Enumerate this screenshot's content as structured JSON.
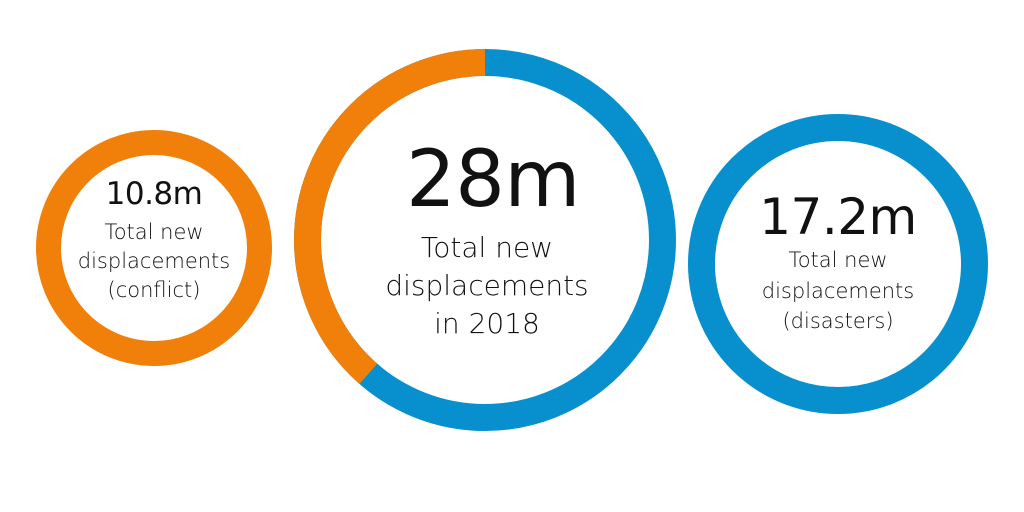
{
  "colors": {
    "conflict": "#F08009",
    "disasters": "#0790CD",
    "text": "#111111"
  },
  "circles": {
    "conflict": {
      "value": "10.8m",
      "lines": [
        "Total new",
        "displacements",
        "(conflict)"
      ]
    },
    "total": {
      "value": "28m",
      "lines": [
        "Total new",
        "displacements",
        "in 2018"
      ]
    },
    "disasters": {
      "value": "17.2m",
      "lines": [
        "Total new",
        "displacements",
        "(disasters)"
      ]
    }
  },
  "chart_data": {
    "type": "pie",
    "title": "Total new displacements in 2018",
    "total": 28,
    "unit": "million",
    "categories": [
      "Conflict",
      "Disasters"
    ],
    "values": [
      10.8,
      17.2
    ],
    "colors": [
      "#F08009",
      "#0790CD"
    ],
    "annotations": [
      "10.8m Total new displacements (conflict)",
      "28m Total new displacements in 2018",
      "17.2m Total new displacements (disasters)"
    ]
  }
}
